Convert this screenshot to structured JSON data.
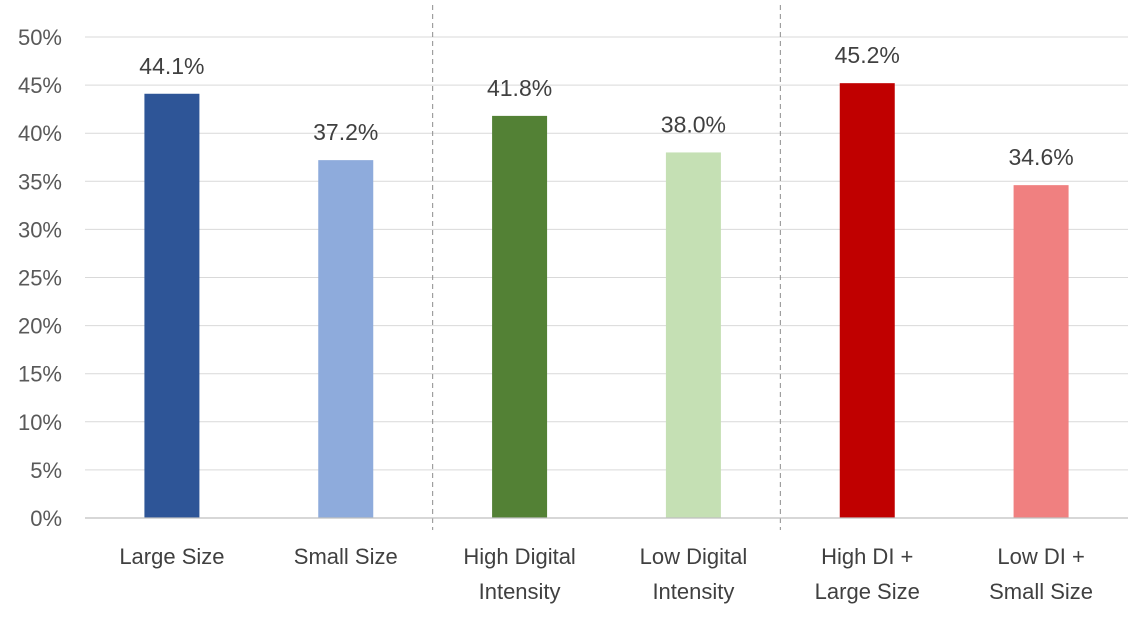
{
  "chart_data": {
    "type": "bar",
    "title": "",
    "xlabel": "",
    "ylabel": "",
    "ylim": [
      0,
      50
    ],
    "yticks": [
      0,
      5,
      10,
      15,
      20,
      25,
      30,
      35,
      40,
      45,
      50
    ],
    "ytick_labels": [
      "0%",
      "5%",
      "10%",
      "15%",
      "20%",
      "25%",
      "30%",
      "35%",
      "40%",
      "45%",
      "50%"
    ],
    "grid": true,
    "legend": "none",
    "categories": [
      [
        "Large Size"
      ],
      [
        "Small Size"
      ],
      [
        "High Digital",
        "Intensity"
      ],
      [
        "Low Digital",
        "Intensity"
      ],
      [
        "High DI +",
        "Large Size"
      ],
      [
        "Low DI +",
        "Small Size"
      ]
    ],
    "values": [
      44.1,
      37.2,
      41.8,
      38.0,
      45.2,
      34.6
    ],
    "data_labels": [
      "44.1%",
      "37.2%",
      "41.8%",
      "38.0%",
      "45.2%",
      "34.6%"
    ],
    "colors": [
      "#2e5597",
      "#8eabdc",
      "#538135",
      "#c5e0b4",
      "#c00000",
      "#f08080"
    ],
    "group_dividers_after": [
      2,
      4
    ]
  }
}
